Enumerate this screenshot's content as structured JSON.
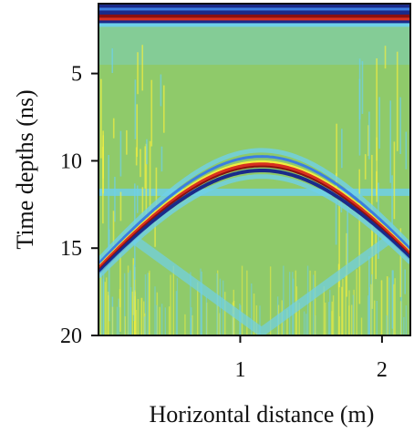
{
  "chart_data": {
    "type": "heatmap",
    "title": "",
    "subtitle": "",
    "xlabel": "Horizontal distance (m)",
    "ylabel": "Time depths (ns)",
    "xlim": [
      0,
      2.2
    ],
    "ylim": [
      1.0,
      20
    ],
    "y_inverted": true,
    "x_ticks": [
      {
        "value": 1,
        "label": "1"
      },
      {
        "value": 2,
        "label": "2"
      }
    ],
    "y_ticks": [
      {
        "value": 5,
        "label": "5"
      },
      {
        "value": 10,
        "label": "10"
      },
      {
        "value": 15,
        "label": "15"
      },
      {
        "value": 20,
        "label": "20"
      }
    ],
    "grid": false,
    "legend": "none",
    "colormap": [
      "#1a2a8a",
      "#3b7ee0",
      "#6fd0e8",
      "#8fca6a",
      "#f2ee40",
      "#d83020",
      "#8a1010"
    ],
    "background_color": "#8fca6a",
    "features": {
      "direct_wave_band": {
        "t_start": 1.0,
        "t_end": 2.3
      },
      "hyperbola": {
        "apex_x": 1.15,
        "apex_t": 10.2,
        "velocity_scale": 2.6
      },
      "horizontal_reflector_t": 11.8
    }
  }
}
